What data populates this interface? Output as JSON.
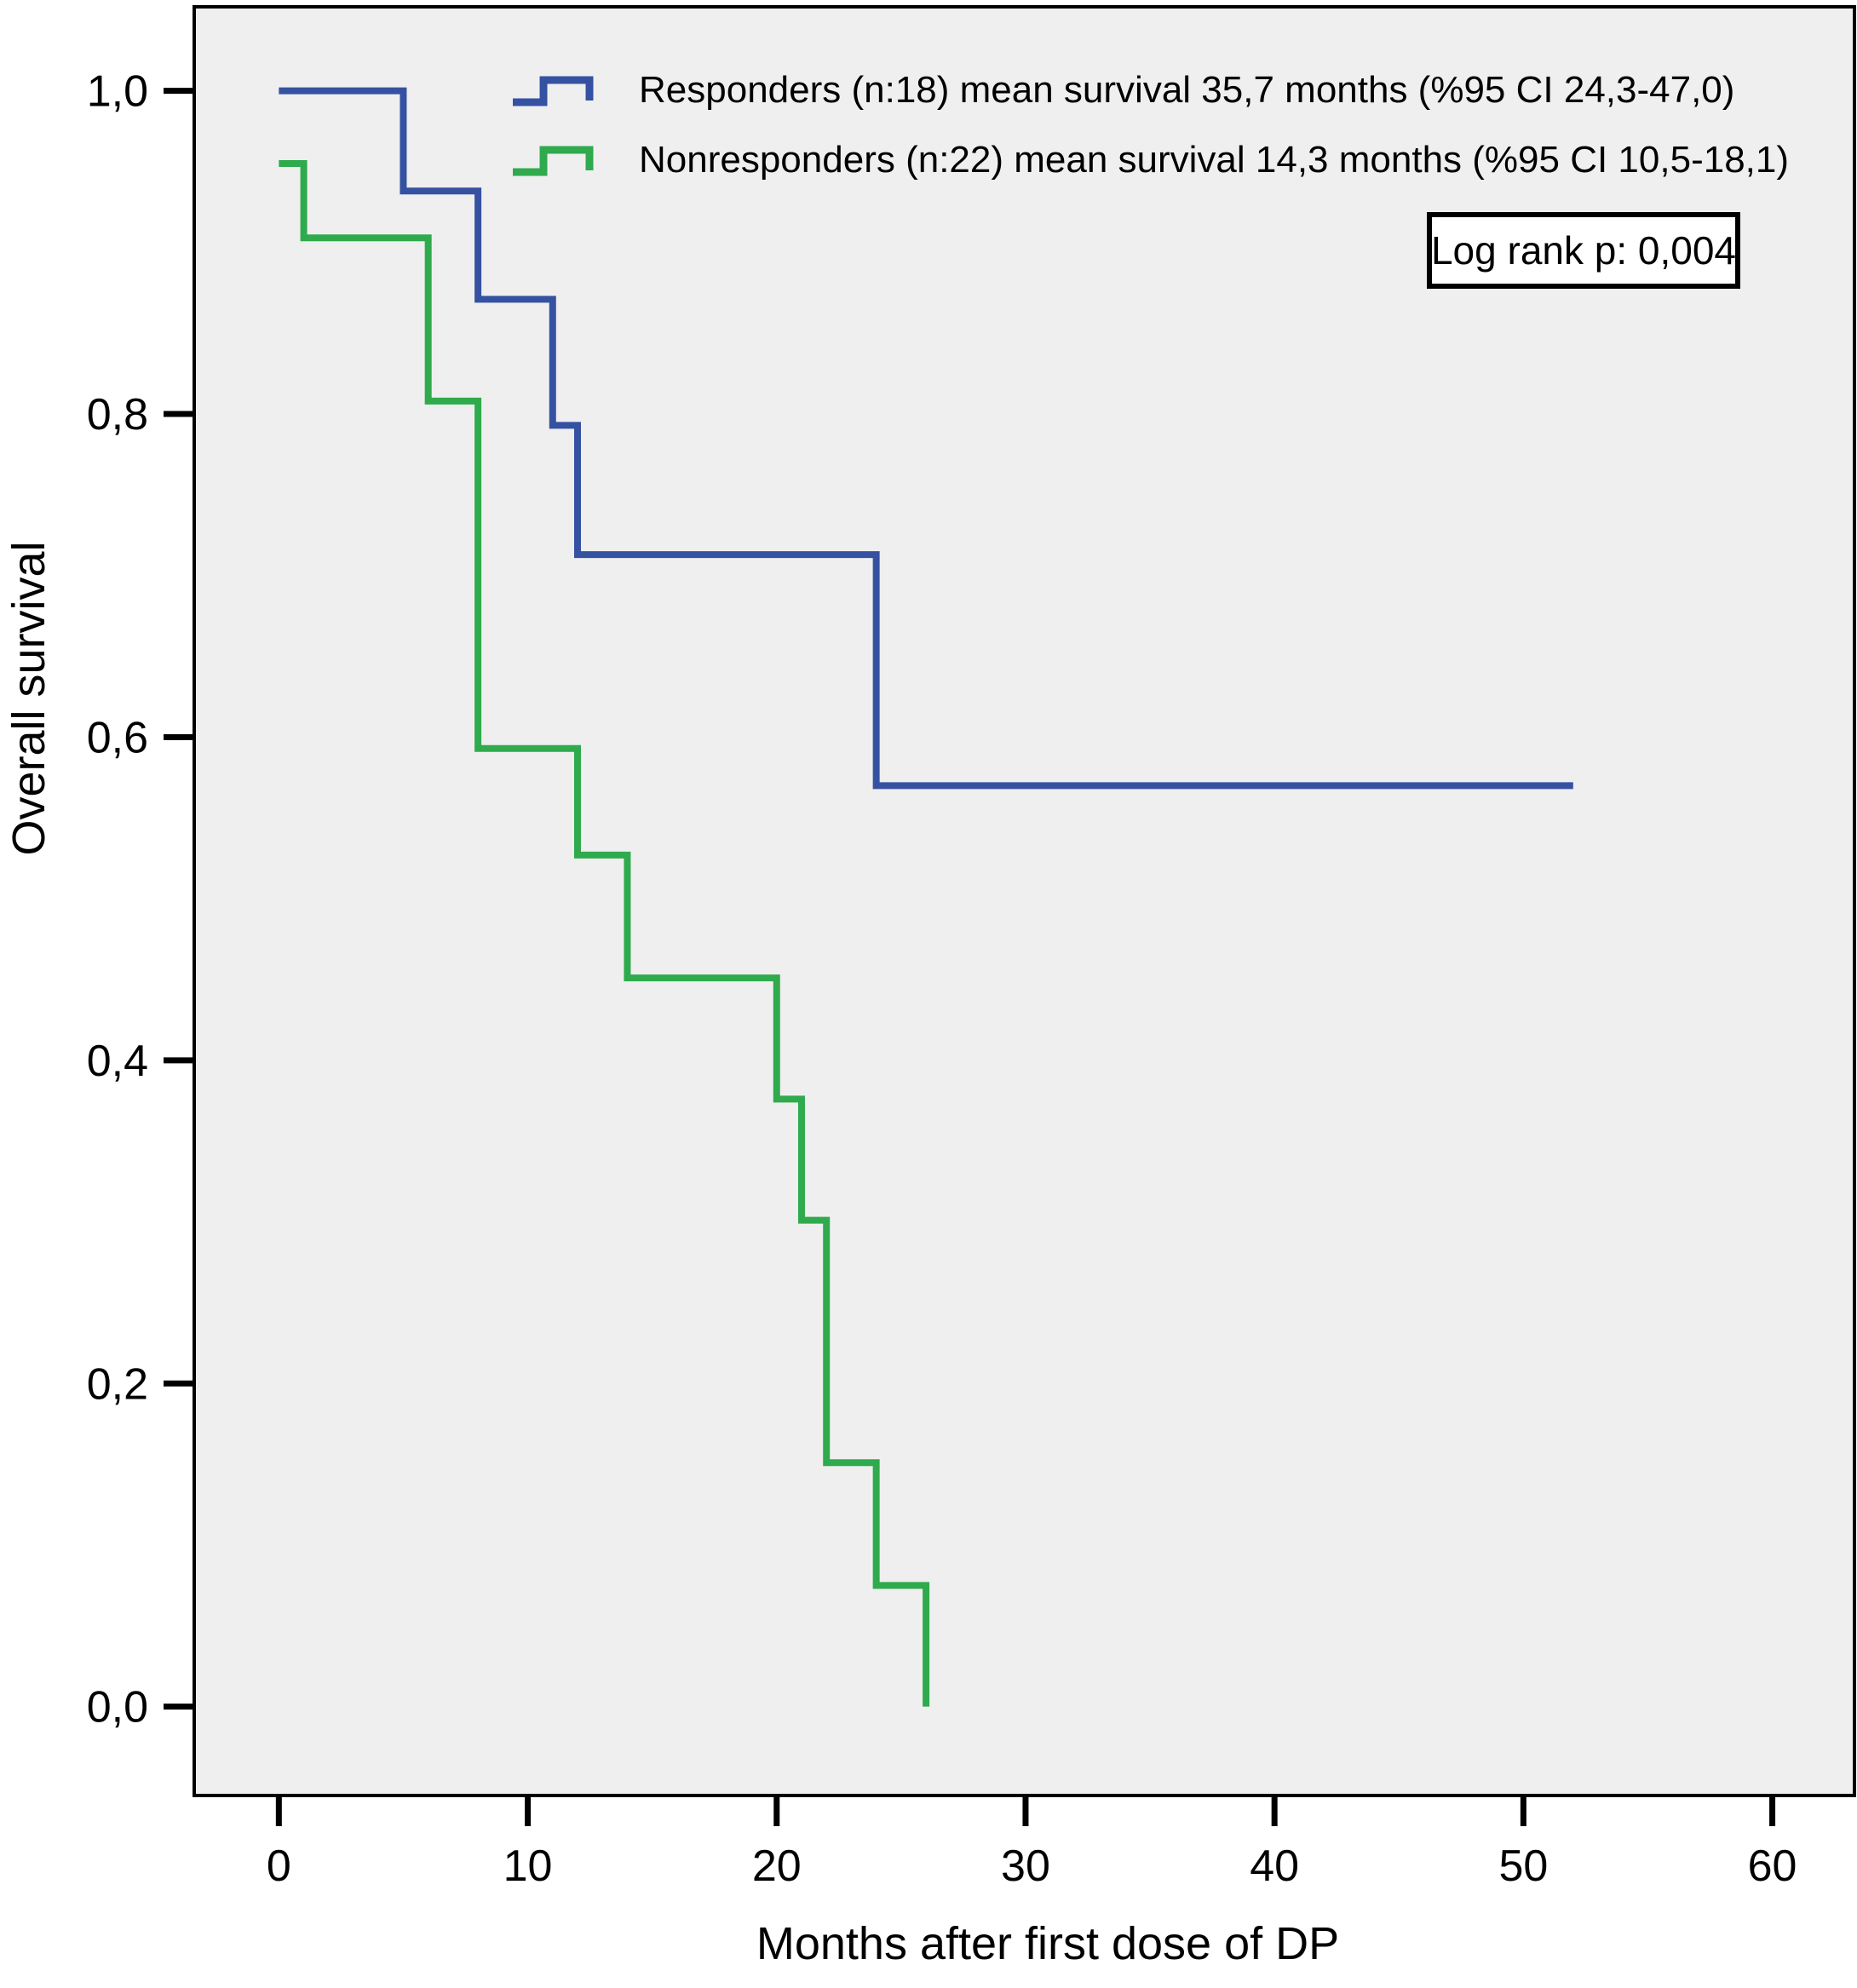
{
  "figure": {
    "legend": {
      "items": [
        {
          "name": "responders",
          "label": "Responders (n:18) mean survival 35,7 months (%95 CI 24,3-47,0)",
          "color": "#3551a1"
        },
        {
          "name": "nonresponders",
          "label": "Nonresponders (n:22) mean survival 14,3 months (%95 CI 10,5-18,1)",
          "color": "#2faa4d"
        }
      ]
    },
    "stats_box": {
      "label": "Log rank p: 0,004"
    }
  },
  "chart_data": {
    "type": "line",
    "subtype": "kaplan-meier-step",
    "title": "",
    "xlabel": "Months after first dose of DP",
    "ylabel": "Overall survival",
    "xlim": [
      -3.4,
      63.3
    ],
    "ylim": [
      -0.055,
      1.052
    ],
    "grid": false,
    "legend_position": "top-inside",
    "plot_background": "#efefef",
    "x_ticks": {
      "values": [
        0,
        10,
        20,
        30,
        40,
        50,
        60
      ],
      "labels": [
        "0",
        "10",
        "20",
        "30",
        "40",
        "50",
        "60"
      ]
    },
    "y_ticks": {
      "values": [
        0.0,
        0.2,
        0.4,
        0.6,
        0.8,
        1.0
      ],
      "labels": [
        "0,0",
        "0,2",
        "0,4",
        "0,6",
        "0,8",
        "1,0"
      ]
    },
    "series": [
      {
        "name": "Responders",
        "n": 18,
        "color": "#3551a1",
        "mean_survival_months": "35,7",
        "ci_95": "24,3-47,0",
        "steps": [
          [
            0,
            1.0
          ],
          [
            5,
            0.938
          ],
          [
            8,
            0.871
          ],
          [
            11,
            0.793
          ],
          [
            12,
            0.713
          ],
          [
            24,
            0.57
          ]
        ],
        "end_time": 52
      },
      {
        "name": "Nonresponders",
        "n": 22,
        "color": "#2faa4d",
        "mean_survival_months": "14,3",
        "ci_95": "10,5-18,1",
        "steps": [
          [
            0,
            0.955
          ],
          [
            1,
            0.909
          ],
          [
            6,
            0.808
          ],
          [
            8,
            0.593
          ],
          [
            12,
            0.527
          ],
          [
            14,
            0.451
          ],
          [
            20,
            0.376
          ],
          [
            21,
            0.301
          ],
          [
            22,
            0.151
          ],
          [
            24,
            0.075
          ],
          [
            26,
            0.0
          ]
        ],
        "end_time": 26
      }
    ],
    "annotations": [
      "Log rank p: 0,004"
    ]
  }
}
